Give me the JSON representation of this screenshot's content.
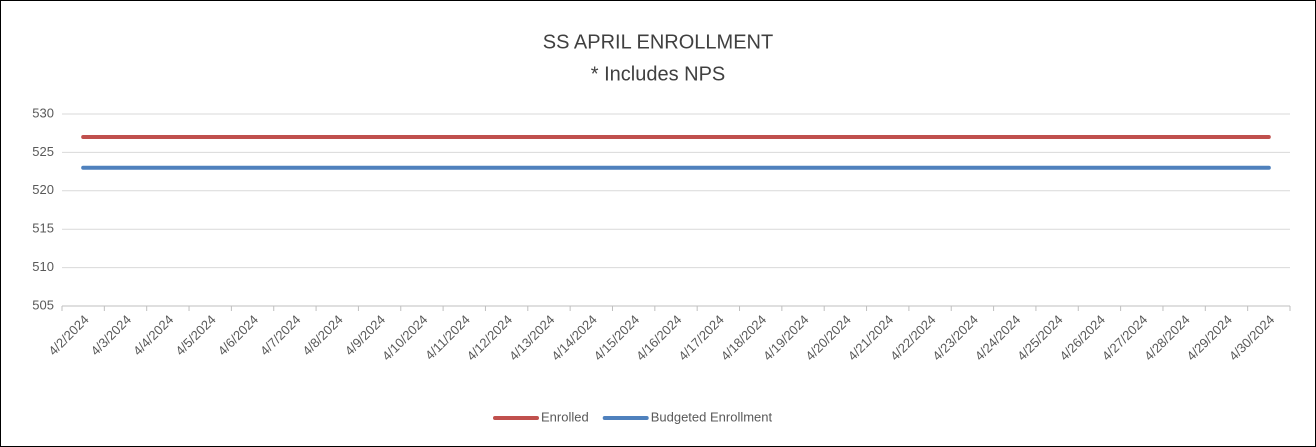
{
  "chart_data": {
    "type": "line",
    "title": "SS APRIL ENROLLMENT",
    "subtitle": "* Includes NPS",
    "categories": [
      "4/2/2024",
      "4/3/2024",
      "4/4/2024",
      "4/5/2024",
      "4/6/2024",
      "4/7/2024",
      "4/8/2024",
      "4/9/2024",
      "4/10/2024",
      "4/11/2024",
      "4/12/2024",
      "4/13/2024",
      "4/14/2024",
      "4/15/2024",
      "4/16/2024",
      "4/17/2024",
      "4/18/2024",
      "4/19/2024",
      "4/20/2024",
      "4/21/2024",
      "4/22/2024",
      "4/23/2024",
      "4/24/2024",
      "4/25/2024",
      "4/26/2024",
      "4/27/2024",
      "4/28/2024",
      "4/29/2024",
      "4/30/2024"
    ],
    "series": [
      {
        "name": "Enrolled",
        "color": "#c0504d",
        "values": [
          527,
          527,
          527,
          527,
          527,
          527,
          527,
          527,
          527,
          527,
          527,
          527,
          527,
          527,
          527,
          527,
          527,
          527,
          527,
          527,
          527,
          527,
          527,
          527,
          527,
          527,
          527,
          527,
          527
        ]
      },
      {
        "name": "Budgeted Enrollment",
        "color": "#4f81bd",
        "values": [
          523,
          523,
          523,
          523,
          523,
          523,
          523,
          523,
          523,
          523,
          523,
          523,
          523,
          523,
          523,
          523,
          523,
          523,
          523,
          523,
          523,
          523,
          523,
          523,
          523,
          523,
          523,
          523,
          523
        ]
      }
    ],
    "ylim": [
      505,
      530
    ],
    "yticks": [
      505,
      510,
      515,
      520,
      525,
      530
    ],
    "grid": true,
    "legend": "bottom"
  }
}
